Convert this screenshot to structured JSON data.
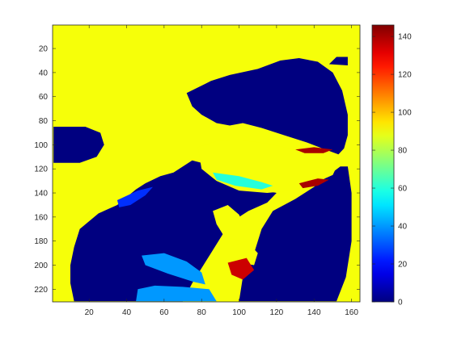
{
  "chart_data": {
    "type": "heatmap",
    "title": "",
    "xlabel": "",
    "ylabel": "",
    "colormap": "jet",
    "color_scale": "discrete (piecewise-constant regions)",
    "xlim": [
      1,
      164
    ],
    "ylim": [
      1,
      230
    ],
    "y_direction": "reversed (row 1 at top)",
    "x_ticks": [
      20,
      40,
      60,
      80,
      100,
      120,
      140,
      160
    ],
    "y_ticks": [
      20,
      40,
      60,
      80,
      100,
      120,
      140,
      160,
      180,
      200,
      220
    ],
    "colorbar": {
      "range": [
        0,
        146
      ],
      "ticks": [
        0,
        20,
        40,
        60,
        80,
        100,
        120,
        140
      ],
      "position": "right"
    },
    "background_value": 90,
    "regions": [
      {
        "value": 0,
        "desc": "dark blue body of cat",
        "points": [
          [
            70,
            230
          ],
          [
            75,
            215
          ],
          [
            85,
            190
          ],
          [
            95,
            165
          ],
          [
            105,
            155
          ],
          [
            115,
            148
          ],
          [
            120,
            140
          ],
          [
            110,
            137
          ],
          [
            95,
            132
          ],
          [
            84,
            122
          ],
          [
            80,
            115
          ],
          [
            75,
            113
          ],
          [
            65,
            123
          ],
          [
            58,
            126
          ],
          [
            50,
            132
          ],
          [
            45,
            137
          ],
          [
            35,
            150
          ],
          [
            25,
            157
          ],
          [
            15,
            170
          ],
          [
            12,
            185
          ],
          [
            10,
            200
          ],
          [
            10,
            215
          ],
          [
            12,
            230
          ]
        ]
      },
      {
        "value": 0,
        "desc": "dark blue head of cat",
        "points": [
          [
            72,
            57
          ],
          [
            85,
            47
          ],
          [
            95,
            42
          ],
          [
            110,
            37
          ],
          [
            122,
            30
          ],
          [
            132,
            28
          ],
          [
            142,
            31
          ],
          [
            150,
            40
          ],
          [
            155,
            55
          ],
          [
            158,
            75
          ],
          [
            158,
            92
          ],
          [
            156,
            103
          ],
          [
            153,
            108
          ],
          [
            146,
            104
          ],
          [
            136,
            98
          ],
          [
            124,
            92
          ],
          [
            112,
            86
          ],
          [
            102,
            82
          ],
          [
            95,
            84
          ],
          [
            88,
            82
          ],
          [
            80,
            75
          ],
          [
            75,
            68
          ]
        ]
      },
      {
        "value": 0,
        "desc": "dark blue lower right",
        "points": [
          [
            118,
            155
          ],
          [
            130,
            145
          ],
          [
            140,
            135
          ],
          [
            148,
            125
          ],
          [
            154,
            118
          ],
          [
            158,
            118
          ],
          [
            160,
            140
          ],
          [
            160,
            180
          ],
          [
            157,
            210
          ],
          [
            152,
            230
          ],
          [
            100,
            230
          ],
          [
            102,
            210
          ],
          [
            108,
            190
          ],
          [
            112,
            170
          ]
        ]
      },
      {
        "value": 0,
        "desc": "dark blue left patch",
        "points": [
          [
            1,
            85
          ],
          [
            18,
            85
          ],
          [
            26,
            90
          ],
          [
            28,
            100
          ],
          [
            24,
            110
          ],
          [
            15,
            115
          ],
          [
            1,
            115
          ]
        ]
      },
      {
        "value": 0,
        "desc": "dark blue ear spot",
        "points": [
          [
            148,
            33
          ],
          [
            152,
            27
          ],
          [
            158,
            27
          ],
          [
            158,
            34
          ]
        ]
      },
      {
        "value": 90,
        "desc": "yellow chest stripes",
        "points": [
          [
            78,
            102
          ],
          [
            88,
            97
          ],
          [
            100,
            96
          ],
          [
            115,
            99
          ],
          [
            130,
            104
          ],
          [
            145,
            110
          ],
          [
            153,
            115
          ],
          [
            150,
            125
          ],
          [
            140,
            132
          ],
          [
            128,
            138
          ],
          [
            115,
            140
          ],
          [
            100,
            138
          ],
          [
            88,
            130
          ],
          [
            80,
            120
          ]
        ]
      },
      {
        "value": 90,
        "desc": "yellow fur strand 1",
        "points": [
          [
            86,
            155
          ],
          [
            94,
            150
          ],
          [
            100,
            158
          ],
          [
            104,
            172
          ],
          [
            100,
            180
          ],
          [
            92,
            176
          ],
          [
            88,
            166
          ]
        ]
      },
      {
        "value": 90,
        "desc": "yellow fur strand 2",
        "points": [
          [
            96,
            184
          ],
          [
            104,
            180
          ],
          [
            110,
            190
          ],
          [
            108,
            200
          ],
          [
            100,
            198
          ]
        ]
      },
      {
        "value": 60,
        "desc": "cyan-green chest stripe",
        "points": [
          [
            86,
            123
          ],
          [
            100,
            126
          ],
          [
            112,
            131
          ],
          [
            118,
            134
          ],
          [
            112,
            137
          ],
          [
            98,
            134
          ],
          [
            88,
            129
          ]
        ]
      },
      {
        "value": 40,
        "desc": "light blue shadow",
        "points": [
          [
            48,
            192
          ],
          [
            60,
            190
          ],
          [
            72,
            197
          ],
          [
            80,
            206
          ],
          [
            82,
            216
          ],
          [
            76,
            214
          ],
          [
            62,
            207
          ],
          [
            50,
            200
          ]
        ]
      },
      {
        "value": 40,
        "desc": "light blue bottom band",
        "points": [
          [
            45,
            230
          ],
          [
            46,
            220
          ],
          [
            55,
            217
          ],
          [
            70,
            218
          ],
          [
            84,
            220
          ],
          [
            88,
            230
          ]
        ]
      },
      {
        "value": 25,
        "desc": "mid blue stripe",
        "points": [
          [
            35,
            146
          ],
          [
            46,
            138
          ],
          [
            54,
            135
          ],
          [
            50,
            142
          ],
          [
            42,
            150
          ],
          [
            36,
            152
          ]
        ]
      },
      {
        "value": 135,
        "desc": "red-orange spot lower",
        "points": [
          [
            94,
            198
          ],
          [
            104,
            194
          ],
          [
            108,
            204
          ],
          [
            102,
            212
          ],
          [
            96,
            208
          ]
        ]
      },
      {
        "value": 140,
        "desc": "red spot on head",
        "points": [
          [
            130,
            104
          ],
          [
            140,
            102
          ],
          [
            150,
            104
          ],
          [
            145,
            107
          ],
          [
            135,
            107
          ]
        ]
      },
      {
        "value": 140,
        "desc": "red stripe on chest",
        "points": [
          [
            132,
            132
          ],
          [
            142,
            128
          ],
          [
            148,
            129
          ],
          [
            142,
            134
          ],
          [
            134,
            136
          ]
        ]
      }
    ]
  }
}
